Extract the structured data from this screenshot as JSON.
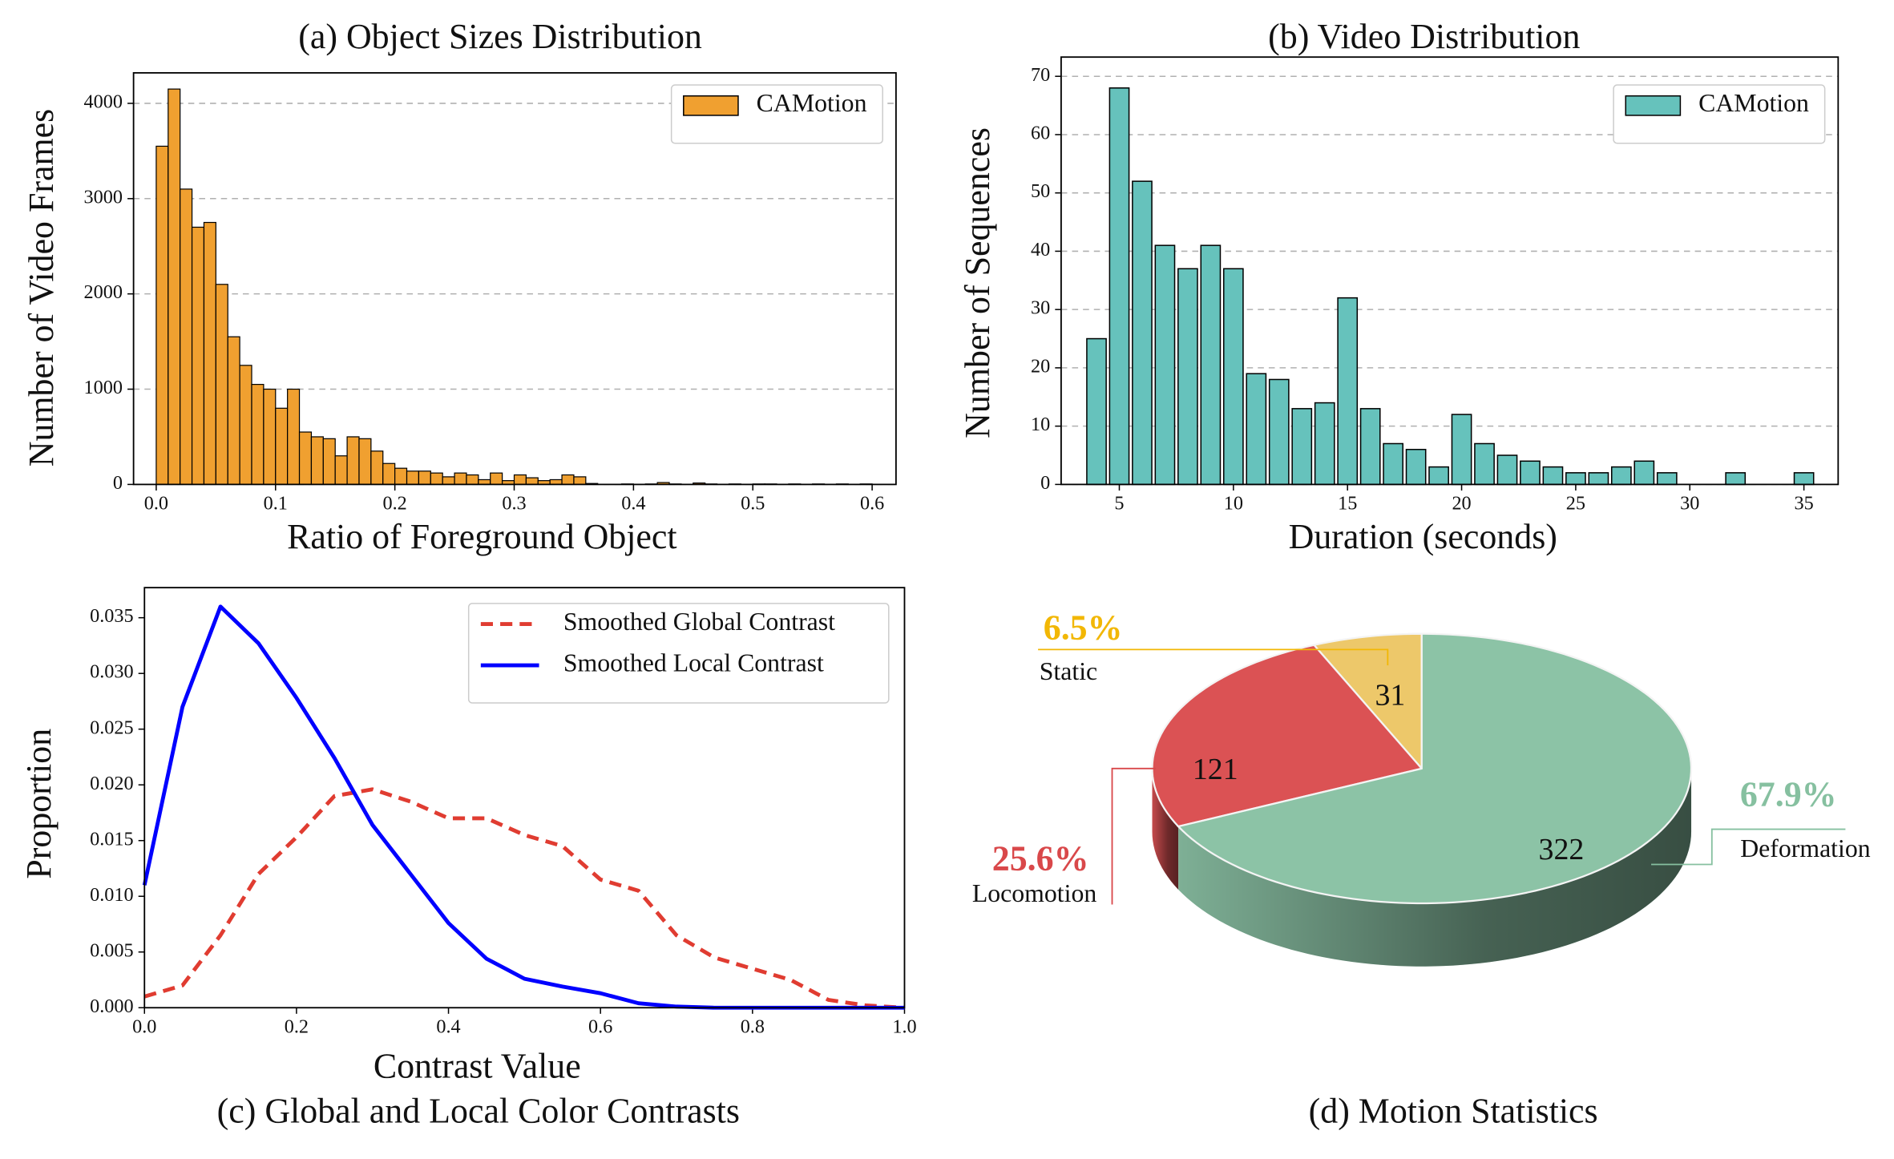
{
  "chart_data": [
    {
      "type": "histogram",
      "title": "(a) Object Sizes Distribution",
      "x_label": "Ratio of Foreground Object",
      "y_label": "Number of Video Frames",
      "bins": [
        0,
        0.01,
        0.02,
        0.03,
        0.04,
        0.05,
        0.06,
        0.07,
        0.08,
        0.09,
        0.1,
        0.11,
        0.12,
        0.13,
        0.14,
        0.15,
        0.16,
        0.17,
        0.18,
        0.19,
        0.2,
        0.21,
        0.22,
        0.23,
        0.24,
        0.25,
        0.26,
        0.27,
        0.28,
        0.29,
        0.3,
        0.31,
        0.32,
        0.33,
        0.34,
        0.35,
        0.36,
        0.37,
        0.38,
        0.39,
        0.4,
        0.41,
        0.42,
        0.43,
        0.44,
        0.45,
        0.46,
        0.47,
        0.48,
        0.49,
        0.5,
        0.51,
        0.52,
        0.53,
        0.54,
        0.55,
        0.56,
        0.57,
        0.58,
        0.59,
        0.6
      ],
      "series": [
        {
          "name": "CAMotion",
          "color": "#f0a030",
          "values": [
            3550,
            4150,
            3100,
            2700,
            2750,
            2100,
            1550,
            1250,
            1050,
            1000,
            800,
            1000,
            550,
            500,
            480,
            300,
            500,
            480,
            350,
            220,
            170,
            140,
            140,
            120,
            80,
            120,
            100,
            50,
            120,
            40,
            100,
            70,
            40,
            50,
            100,
            80,
            10,
            0,
            0,
            5,
            0,
            5,
            20,
            5,
            0,
            15,
            5,
            0,
            5,
            0,
            5,
            5,
            0,
            5,
            0,
            5,
            0,
            5,
            0,
            5
          ]
        }
      ],
      "xlim": [
        -0.019,
        0.62
      ],
      "xticks": [
        {
          "value": 0,
          "label": "0.0"
        },
        0.1,
        0.2,
        0.3,
        0.4,
        0.5,
        0.6
      ],
      "ylim": [
        0,
        4320
      ],
      "yticks": [
        0,
        1000,
        2000,
        3000,
        4000
      ],
      "grid": true,
      "legend": "upper right"
    },
    {
      "type": "bar",
      "title": "(b) Video Distribution",
      "x_label": "Duration (seconds)",
      "y_label": "Number of Sequences",
      "x": [
        4,
        5,
        6,
        7,
        8,
        9,
        10,
        11,
        12,
        13,
        14,
        15,
        16,
        17,
        18,
        19,
        20,
        21,
        22,
        23,
        24,
        25,
        26,
        27,
        28,
        29,
        32,
        35
      ],
      "series": [
        {
          "name": "CAMotion",
          "color": "#66c2bc",
          "values": [
            25,
            68,
            52,
            41,
            37,
            41,
            37,
            19,
            18,
            13,
            14,
            32,
            13,
            7,
            6,
            3,
            12,
            7,
            5,
            4,
            3,
            2,
            2,
            3,
            4,
            2,
            2,
            2
          ]
        }
      ],
      "xlim": [
        2.45,
        36.5
      ],
      "xticks": [
        5,
        10,
        15,
        20,
        25,
        30,
        35
      ],
      "ylim": [
        0,
        73.3
      ],
      "yticks": [
        0,
        10,
        20,
        30,
        40,
        50,
        60,
        70
      ],
      "grid": true,
      "legend": "upper right"
    },
    {
      "type": "line",
      "title": "(c) Global and Local Color Contrasts",
      "x_label": "Contrast Value",
      "y_label": "Proportion",
      "x": [
        0,
        0.05,
        0.1,
        0.15,
        0.2,
        0.25,
        0.3,
        0.35,
        0.4,
        0.45,
        0.5,
        0.55,
        0.6,
        0.65,
        0.7,
        0.75,
        0.8,
        0.85,
        0.9,
        0.95,
        1
      ],
      "series": [
        {
          "name": "Smoothed Global Contrast",
          "color": "#e03c31",
          "dashed": true,
          "values": [
            0.001,
            0.002,
            0.0065,
            0.012,
            0.0153,
            0.019,
            0.0196,
            0.0185,
            0.017,
            0.017,
            0.0155,
            0.0145,
            0.0115,
            0.0105,
            0.0065,
            0.0045,
            0.0035,
            0.0025,
            0.0007,
            0.0002,
            0
          ]
        },
        {
          "name": "Smoothed Local Contrast",
          "color": "#0000ff",
          "dashed": false,
          "values": [
            0.011,
            0.027,
            0.036,
            0.0327,
            0.0278,
            0.0224,
            0.0164,
            0.012,
            0.0076,
            0.0044,
            0.0026,
            0.0019,
            0.0013,
            0.0004,
            0.0001,
            0,
            0,
            0,
            0,
            0,
            0
          ]
        }
      ],
      "xlim": [
        0,
        1
      ],
      "xticks": [
        {
          "value": 0,
          "label": "0.0"
        },
        0.2,
        0.4,
        0.6,
        0.8,
        {
          "value": 1,
          "label": "1.0"
        }
      ],
      "ylim": [
        0,
        0.0377
      ],
      "yticks": [
        {
          "value": 0,
          "label": "0.000"
        },
        0.005,
        {
          "value": 0.01,
          "label": "0.010"
        },
        0.015,
        {
          "value": 0.02,
          "label": "0.020"
        },
        0.025,
        {
          "value": 0.03,
          "label": "0.030"
        },
        0.035
      ],
      "grid": false,
      "legend": "upper right"
    },
    {
      "type": "pie",
      "title": "(d) Motion Statistics",
      "categories": [
        "Static",
        "Locomotion",
        "Deformation"
      ],
      "values": [
        31,
        121,
        322
      ],
      "percent_labels": [
        "6.5%",
        "25.6%",
        "67.9%"
      ],
      "colors": [
        "#edc86a",
        "#db5254",
        "#8cc3a6"
      ],
      "label_colors": [
        "#f2b705",
        "#d9484a",
        "#86c0a0"
      ]
    }
  ]
}
